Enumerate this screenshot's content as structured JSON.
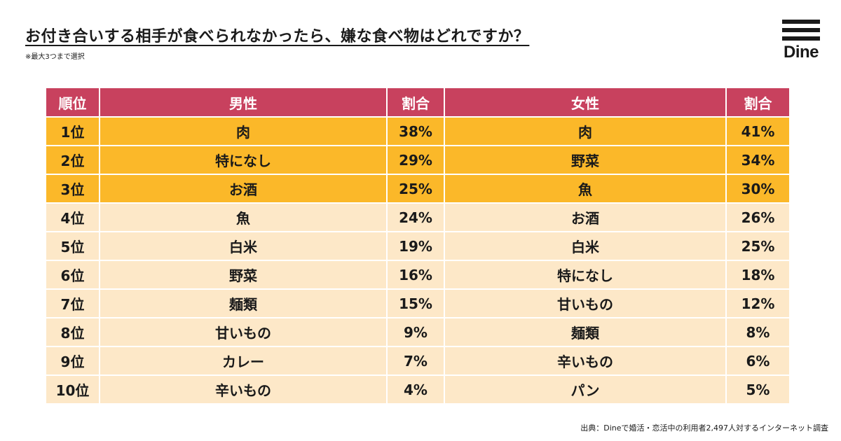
{
  "title": "お付き合いする相手が食べられなかったら、嫌な食べ物はどれですか？",
  "subtitle": "※最大3つまで選択",
  "logo": {
    "text": "Dine",
    "icon": "three-bars-icon"
  },
  "source": "出典：Dineで婚活・恋活中の利用者2,497人対するインターネット調査",
  "colors": {
    "header": "#c8415e",
    "top3": "#fbb829",
    "others": "#fde8c8"
  },
  "chart_data": {
    "type": "table",
    "columns": [
      "順位",
      "男性",
      "割合",
      "女性",
      "割合"
    ],
    "rows": [
      {
        "rank": "1位",
        "male": "肉",
        "male_pct": "38%",
        "female": "肉",
        "female_pct": "41%"
      },
      {
        "rank": "2位",
        "male": "特になし",
        "male_pct": "29%",
        "female": "野菜",
        "female_pct": "34%"
      },
      {
        "rank": "3位",
        "male": "お酒",
        "male_pct": "25%",
        "female": "魚",
        "female_pct": "30%"
      },
      {
        "rank": "4位",
        "male": "魚",
        "male_pct": "24%",
        "female": "お酒",
        "female_pct": "26%"
      },
      {
        "rank": "5位",
        "male": "白米",
        "male_pct": "19%",
        "female": "白米",
        "female_pct": "25%"
      },
      {
        "rank": "6位",
        "male": "野菜",
        "male_pct": "16%",
        "female": "特になし",
        "female_pct": "18%"
      },
      {
        "rank": "7位",
        "male": "麺類",
        "male_pct": "15%",
        "female": "甘いもの",
        "female_pct": "12%"
      },
      {
        "rank": "8位",
        "male": "甘いもの",
        "male_pct": "9%",
        "female": "麺類",
        "female_pct": "8%"
      },
      {
        "rank": "9位",
        "male": "カレー",
        "male_pct": "7%",
        "female": "辛いもの",
        "female_pct": "6%"
      },
      {
        "rank": "10位",
        "male": "辛いもの",
        "male_pct": "4%",
        "female": "パン",
        "female_pct": "5%"
      }
    ]
  }
}
